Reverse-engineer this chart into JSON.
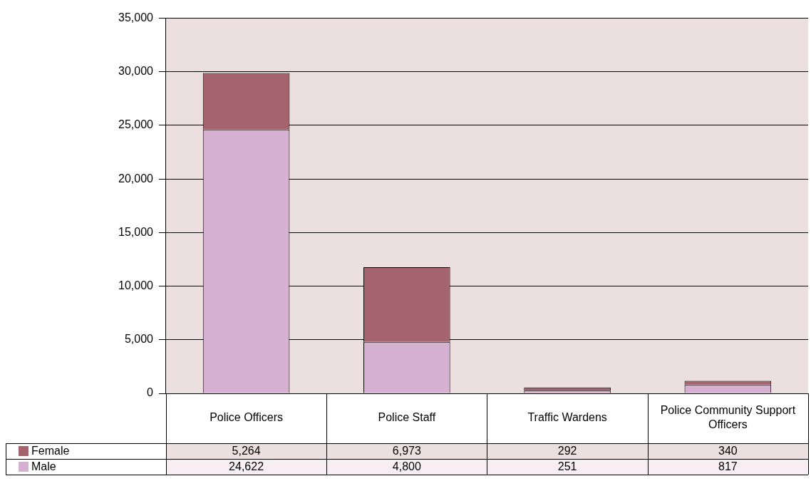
{
  "chart_data": {
    "type": "bar",
    "stacked": true,
    "categories": [
      "Police Officers",
      "Police Staff",
      "Traffic Wardens",
      "Police Community Support Officers"
    ],
    "series": [
      {
        "name": "Male",
        "color": "#d5b0d0",
        "values": [
          24622,
          4800,
          251,
          817
        ],
        "value_labels": [
          "24,622",
          "4,800",
          "251",
          "817"
        ]
      },
      {
        "name": "Female",
        "color": "#a5636e",
        "values": [
          5264,
          6973,
          292,
          340
        ],
        "value_labels": [
          "5,264",
          "6,973",
          "292",
          "340"
        ]
      }
    ],
    "ylim": [
      0,
      35000
    ],
    "yticks": [
      {
        "value": 0,
        "label": "0"
      },
      {
        "value": 5000,
        "label": "5,000"
      },
      {
        "value": 10000,
        "label": "10,000"
      },
      {
        "value": 15000,
        "label": "15,000"
      },
      {
        "value": 20000,
        "label": "20,000"
      },
      {
        "value": 25000,
        "label": "25,000"
      },
      {
        "value": 30000,
        "label": "30,000"
      },
      {
        "value": 35000,
        "label": "35,000"
      }
    ],
    "grid": "y",
    "legend": "bottom left"
  }
}
